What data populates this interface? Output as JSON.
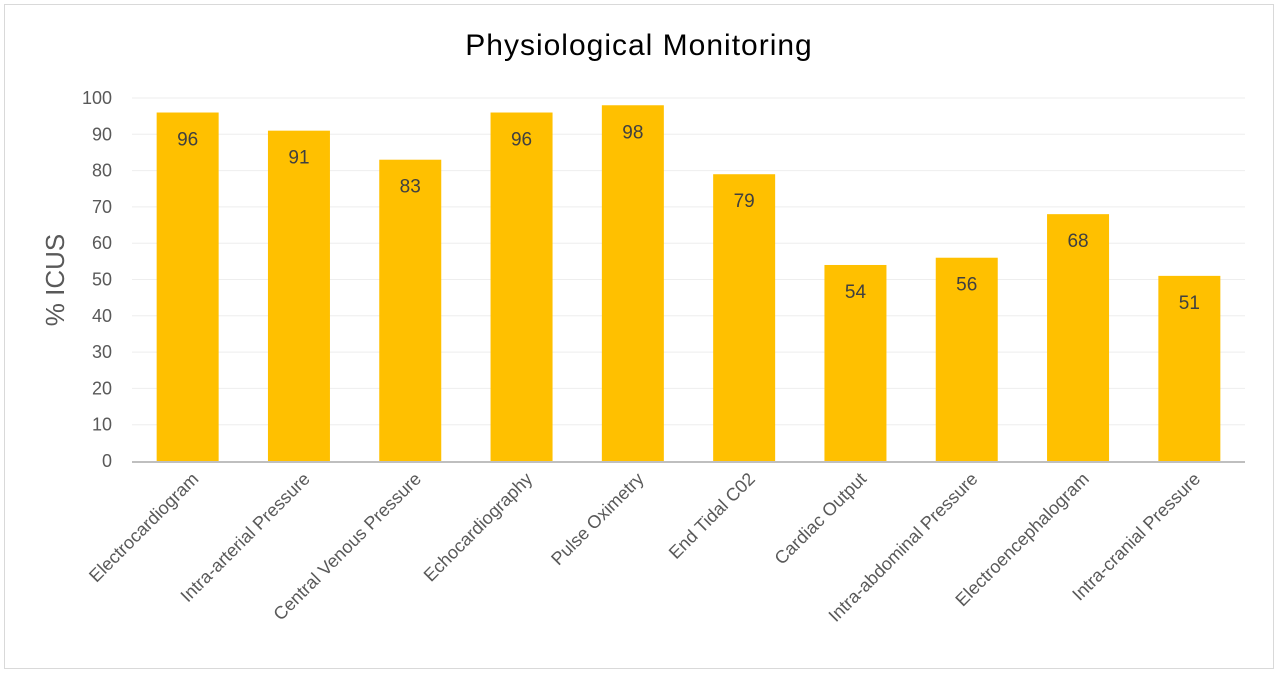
{
  "chart_data": {
    "type": "bar",
    "title": "Physiological Monitoring",
    "xlabel": "",
    "ylabel": "% ICUS",
    "ylim": [
      0,
      100
    ],
    "yticks": [
      "0",
      "10",
      "20",
      "30",
      "40",
      "50",
      "60",
      "70",
      "80",
      "90",
      "100"
    ],
    "grid": true,
    "legend": "none",
    "bar_color": "#FFC000",
    "categories": [
      "Electrocardiogram",
      "Intra-arterial Pressure",
      "Central Venous Pressure",
      "Echocardiography",
      "Pulse Oximetry",
      "End Tidal C02",
      "Cardiac Output",
      "Intra-abdominal Pressure",
      "Electroencephalogram",
      "Intra-cranial Pressure"
    ],
    "values": [
      96,
      91,
      83,
      96,
      98,
      79,
      54,
      56,
      68,
      51
    ],
    "data_labels": [
      "96",
      "91",
      "83",
      "96",
      "98",
      "79",
      "54",
      "56",
      "68",
      "51"
    ]
  }
}
